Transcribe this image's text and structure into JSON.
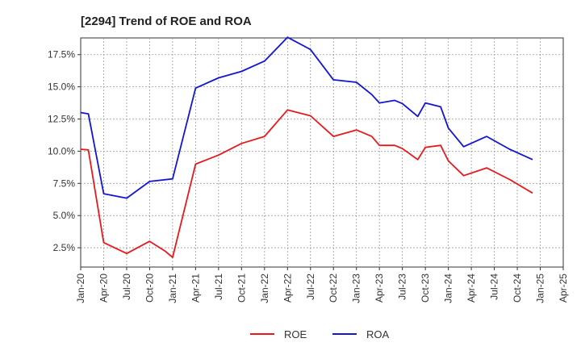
{
  "chart_data": {
    "type": "line",
    "title": "[2294]  Trend of ROE and ROA",
    "xlabel": "",
    "ylabel": "",
    "x_ticks": [
      "Jan-20",
      "Apr-20",
      "Jul-20",
      "Oct-20",
      "Jan-21",
      "Apr-21",
      "Jul-21",
      "Oct-21",
      "Jan-22",
      "Apr-22",
      "Jul-22",
      "Oct-22",
      "Jan-23",
      "Apr-23",
      "Jul-23",
      "Oct-23",
      "Jan-24",
      "Apr-24",
      "Jul-24",
      "Oct-24",
      "Jan-25",
      "Apr-25"
    ],
    "y_ticks": [
      "2.5%",
      "5.0%",
      "7.5%",
      "10.0%",
      "12.5%",
      "15.0%",
      "17.5%"
    ],
    "ylim": [
      1.0,
      18.8
    ],
    "grid": true,
    "legend_position": "bottom-center",
    "series": [
      {
        "name": "ROE",
        "color": "#e8191c",
        "points": [
          [
            0,
            10.15
          ],
          [
            1,
            10.1
          ],
          [
            3,
            2.9
          ],
          [
            6,
            2.05
          ],
          [
            9,
            3.0
          ],
          [
            11,
            2.25
          ],
          [
            12,
            1.75
          ],
          [
            15,
            9.0
          ],
          [
            18,
            9.7
          ],
          [
            21,
            10.6
          ],
          [
            24,
            11.15
          ],
          [
            27,
            13.2
          ],
          [
            30,
            12.75
          ],
          [
            33,
            11.15
          ],
          [
            36,
            11.65
          ],
          [
            38,
            11.15
          ],
          [
            39,
            10.45
          ],
          [
            41,
            10.45
          ],
          [
            42,
            10.2
          ],
          [
            44,
            9.35
          ],
          [
            45,
            10.3
          ],
          [
            47,
            10.45
          ],
          [
            48,
            9.25
          ],
          [
            50,
            8.1
          ],
          [
            53,
            8.7
          ],
          [
            56,
            7.8
          ],
          [
            59,
            6.75
          ]
        ]
      },
      {
        "name": "ROA",
        "color": "#1414d4",
        "points": [
          [
            0,
            13.0
          ],
          [
            1,
            12.9
          ],
          [
            3,
            6.7
          ],
          [
            6,
            6.35
          ],
          [
            9,
            7.65
          ],
          [
            12,
            7.85
          ],
          [
            15,
            14.9
          ],
          [
            18,
            15.7
          ],
          [
            21,
            16.2
          ],
          [
            24,
            17.0
          ],
          [
            27,
            18.85
          ],
          [
            30,
            17.9
          ],
          [
            33,
            15.55
          ],
          [
            36,
            15.35
          ],
          [
            38,
            14.4
          ],
          [
            39,
            13.75
          ],
          [
            41,
            13.95
          ],
          [
            42,
            13.7
          ],
          [
            44,
            12.7
          ],
          [
            45,
            13.75
          ],
          [
            47,
            13.45
          ],
          [
            48,
            11.8
          ],
          [
            50,
            10.35
          ],
          [
            53,
            11.15
          ],
          [
            56,
            10.15
          ],
          [
            59,
            9.35
          ]
        ]
      }
    ]
  }
}
